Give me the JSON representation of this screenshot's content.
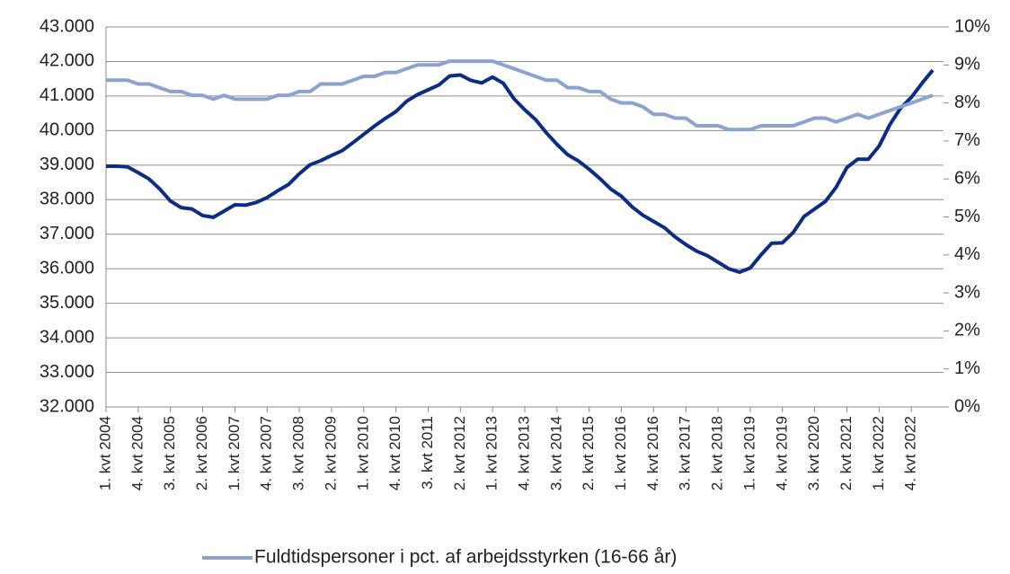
{
  "chart_data": {
    "type": "line",
    "categories": [
      "1. kvt 2004",
      null,
      null,
      "4. kvt 2004",
      null,
      null,
      "3. kvt 2005",
      null,
      null,
      "2. kvt 2006",
      null,
      null,
      "1. kvt 2007",
      null,
      null,
      "4. kvt 2007",
      null,
      null,
      "3. kvt 2008",
      null,
      null,
      "2. kvt 2009",
      null,
      null,
      "1. kvt 2010",
      null,
      null,
      "4. kvt 2010",
      null,
      null,
      "3. kvt 2011",
      null,
      null,
      "2. kvt 2012",
      null,
      null,
      "1. kvt 2013",
      null,
      null,
      "4. kvt 2013",
      null,
      null,
      "3. kvt 2014",
      null,
      null,
      "2. kvt 2015",
      null,
      null,
      "1. kvt 2016",
      null,
      null,
      "4. kvt 2016",
      null,
      null,
      "3. kvt 2017",
      null,
      null,
      "2. kvt 2018",
      null,
      null,
      "1. kvt 2019",
      null,
      null,
      "4. kvt 2019",
      null,
      null,
      "3. kvt 2020",
      null,
      null,
      "2. kvt 2021",
      null,
      null,
      "1. kvt 2022",
      null,
      null,
      "4. kvt 2022",
      null,
      null
    ],
    "series": [
      {
        "color": "#0d2c83",
        "axis": "y",
        "values": [
          38970,
          38970,
          38950,
          38780,
          38600,
          38310,
          37960,
          37770,
          37730,
          37540,
          37490,
          37670,
          37850,
          37840,
          37920,
          38060,
          38260,
          38440,
          38750,
          39010,
          39130,
          39280,
          39420,
          39650,
          39890,
          40130,
          40350,
          40550,
          40850,
          41040,
          41180,
          41320,
          41580,
          41610,
          41450,
          41380,
          41550,
          41370,
          40920,
          40600,
          40320,
          39940,
          39600,
          39300,
          39120,
          38880,
          38610,
          38310,
          38100,
          37790,
          37550,
          37370,
          37190,
          36920,
          36700,
          36510,
          36380,
          36190,
          36000,
          35900,
          36020,
          36400,
          36740,
          36750,
          37050,
          37510,
          37730,
          37950,
          38360,
          38930,
          39170,
          39170,
          39550,
          40170,
          40650,
          40960,
          41370,
          41750
        ]
      },
      {
        "name": "Fuldtidspersoner i pct. af arbejdsstyrken (16-66 år)",
        "color": "#8ca3d0",
        "axis": "y2",
        "values": [
          8.6,
          8.6,
          8.6,
          8.5,
          8.5,
          8.4,
          8.3,
          8.3,
          8.2,
          8.2,
          8.1,
          8.2,
          8.1,
          8.1,
          8.1,
          8.1,
          8.2,
          8.2,
          8.3,
          8.3,
          8.5,
          8.5,
          8.5,
          8.6,
          8.7,
          8.7,
          8.8,
          8.8,
          8.9,
          9.0,
          9.0,
          9.0,
          9.1,
          9.1,
          9.1,
          9.1,
          9.1,
          9.0,
          8.9,
          8.8,
          8.7,
          8.6,
          8.6,
          8.4,
          8.4,
          8.3,
          8.3,
          8.1,
          8.0,
          8.0,
          7.9,
          7.7,
          7.7,
          7.6,
          7.6,
          7.4,
          7.4,
          7.4,
          7.3,
          7.3,
          7.3,
          7.4,
          7.4,
          7.4,
          7.4,
          7.5,
          7.6,
          7.6,
          7.5,
          7.6,
          7.7,
          7.6,
          7.7,
          7.8,
          7.9,
          8.0,
          8.1,
          8.2
        ]
      }
    ],
    "ylim": [
      32000,
      43000
    ],
    "yticks": [
      {
        "value": 32000,
        "label": "32.000"
      },
      {
        "value": 33000,
        "label": "33.000"
      },
      {
        "value": 34000,
        "label": "34.000"
      },
      {
        "value": 35000,
        "label": "35.000"
      },
      {
        "value": 36000,
        "label": "36.000"
      },
      {
        "value": 37000,
        "label": "37.000"
      },
      {
        "value": 38000,
        "label": "38.000"
      },
      {
        "value": 39000,
        "label": "39.000"
      },
      {
        "value": 40000,
        "label": "40.000"
      },
      {
        "value": 41000,
        "label": "41.000"
      },
      {
        "value": 42000,
        "label": "42.000"
      },
      {
        "value": 43000,
        "label": "43.000"
      }
    ],
    "y2lim": [
      0,
      10
    ],
    "y2ticks": [
      {
        "value": 0,
        "label": "0%"
      },
      {
        "value": 1,
        "label": "1%"
      },
      {
        "value": 2,
        "label": "2%"
      },
      {
        "value": 3,
        "label": "3%"
      },
      {
        "value": 4,
        "label": "4%"
      },
      {
        "value": 5,
        "label": "5%"
      },
      {
        "value": 6,
        "label": "6%"
      },
      {
        "value": 7,
        "label": "7%"
      },
      {
        "value": 8,
        "label": "8%"
      },
      {
        "value": 9,
        "label": "9%"
      },
      {
        "value": 10,
        "label": "10%"
      }
    ],
    "grid": true,
    "legend": "bottom"
  }
}
